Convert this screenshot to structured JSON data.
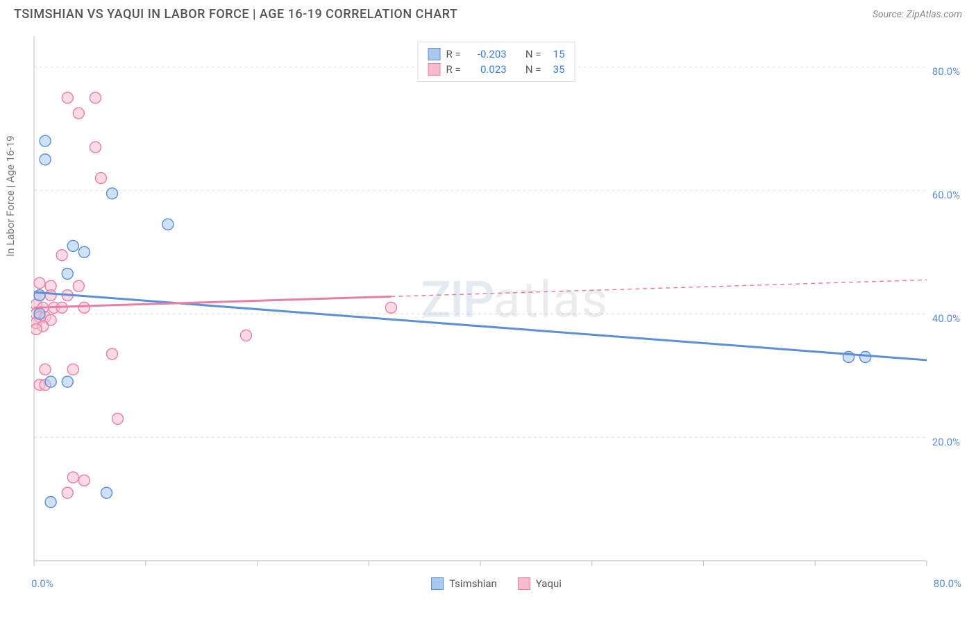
{
  "header": {
    "title": "TSIMSHIAN VS YAQUI IN LABOR FORCE | AGE 16-19 CORRELATION CHART",
    "source": "Source: ZipAtlas.com"
  },
  "chart": {
    "type": "scatter",
    "y_axis_label": "In Labor Force | Age 16-19",
    "xlim": [
      0,
      80
    ],
    "ylim": [
      0,
      85
    ],
    "x_tick_min_label": "0.0%",
    "x_tick_max_label": "80.0%",
    "x_tick_positions": [
      0,
      10,
      20,
      30,
      40,
      50,
      60,
      70,
      80
    ],
    "y_ticks": [
      {
        "v": 20,
        "label": "20.0%"
      },
      {
        "v": 40,
        "label": "40.0%"
      },
      {
        "v": 60,
        "label": "60.0%"
      },
      {
        "v": 80,
        "label": "80.0%"
      }
    ],
    "grid_color": "#dddddd",
    "axis_color": "#bbbbbb",
    "background_color": "#ffffff",
    "marker_radius": 8,
    "marker_opacity": 0.55,
    "marker_stroke_width": 1.4,
    "trend_line_width": 3,
    "series": [
      {
        "name": "Tsimshian",
        "color_fill": "#a8c8ed",
        "color_stroke": "#5b8fd6",
        "R": "-0.203",
        "N": "15",
        "points": [
          [
            1.0,
            68.0
          ],
          [
            1.0,
            65.0
          ],
          [
            7.0,
            59.5
          ],
          [
            12.0,
            54.5
          ],
          [
            3.5,
            51.0
          ],
          [
            4.5,
            50.0
          ],
          [
            3.0,
            46.5
          ],
          [
            0.5,
            43.0
          ],
          [
            0.5,
            40.0
          ],
          [
            1.5,
            29.0
          ],
          [
            3.0,
            29.0
          ],
          [
            6.5,
            11.0
          ],
          [
            1.5,
            9.5
          ],
          [
            73.0,
            33.0
          ],
          [
            74.5,
            33.0
          ]
        ],
        "trend": {
          "x1": 0,
          "y1": 43.5,
          "x2": 80,
          "y2": 32.5,
          "solid_to_x": 80
        }
      },
      {
        "name": "Yaqui",
        "color_fill": "#f5bccd",
        "color_stroke": "#e87fa3",
        "R": "0.023",
        "N": "35",
        "points": [
          [
            3.0,
            75.0
          ],
          [
            5.5,
            75.0
          ],
          [
            4.0,
            72.5
          ],
          [
            5.5,
            67.0
          ],
          [
            6.0,
            62.0
          ],
          [
            2.5,
            49.5
          ],
          [
            0.5,
            45.0
          ],
          [
            1.5,
            44.5
          ],
          [
            4.0,
            44.5
          ],
          [
            0.5,
            43.0
          ],
          [
            1.5,
            43.0
          ],
          [
            3.0,
            43.0
          ],
          [
            0.2,
            41.5
          ],
          [
            0.8,
            41.0
          ],
          [
            1.8,
            41.0
          ],
          [
            2.5,
            41.0
          ],
          [
            4.5,
            41.0
          ],
          [
            0.2,
            40.0
          ],
          [
            0.5,
            39.5
          ],
          [
            1.0,
            39.5
          ],
          [
            1.5,
            39.0
          ],
          [
            0.2,
            38.5
          ],
          [
            0.8,
            38.0
          ],
          [
            0.2,
            37.5
          ],
          [
            19.0,
            36.5
          ],
          [
            7.0,
            33.5
          ],
          [
            1.0,
            31.0
          ],
          [
            3.5,
            31.0
          ],
          [
            0.5,
            28.5
          ],
          [
            1.0,
            28.5
          ],
          [
            7.5,
            23.0
          ],
          [
            3.5,
            13.5
          ],
          [
            4.5,
            13.0
          ],
          [
            3.0,
            11.0
          ],
          [
            32.0,
            41.0
          ]
        ],
        "trend": {
          "x1": 0,
          "y1": 41.0,
          "x2": 80,
          "y2": 45.5,
          "solid_to_x": 32
        }
      }
    ],
    "legend_bottom": [
      {
        "label": "Tsimshian",
        "fill": "#a8c8ed",
        "stroke": "#5b8fd6"
      },
      {
        "label": "Yaqui",
        "fill": "#f5bccd",
        "stroke": "#e87fa3"
      }
    ],
    "watermark": {
      "part1": "ZIP",
      "part2": "atlas"
    }
  }
}
